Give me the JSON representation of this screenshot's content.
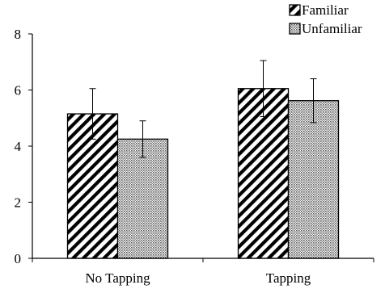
{
  "chart_data": {
    "type": "bar",
    "title": "",
    "xlabel": "",
    "ylabel": "",
    "ylim": [
      0,
      8
    ],
    "yticks": [
      "0",
      "2",
      "4",
      "6",
      "8"
    ],
    "categories": [
      "No Tapping",
      "Tapping"
    ],
    "series": [
      {
        "name": "Familiar",
        "pattern": "diagonal-hatch",
        "values": [
          5.15,
          6.05
        ],
        "error": [
          0.9,
          1.0
        ]
      },
      {
        "name": "Unfamiliar",
        "pattern": "crosshatch-dots",
        "values": [
          4.25,
          5.62
        ],
        "error": [
          0.65,
          0.78
        ]
      }
    ],
    "legend_position": "top-right",
    "grid": false,
    "colors": {
      "axis": "#000000",
      "bar_border": "#000000",
      "background": "#ffffff"
    }
  }
}
